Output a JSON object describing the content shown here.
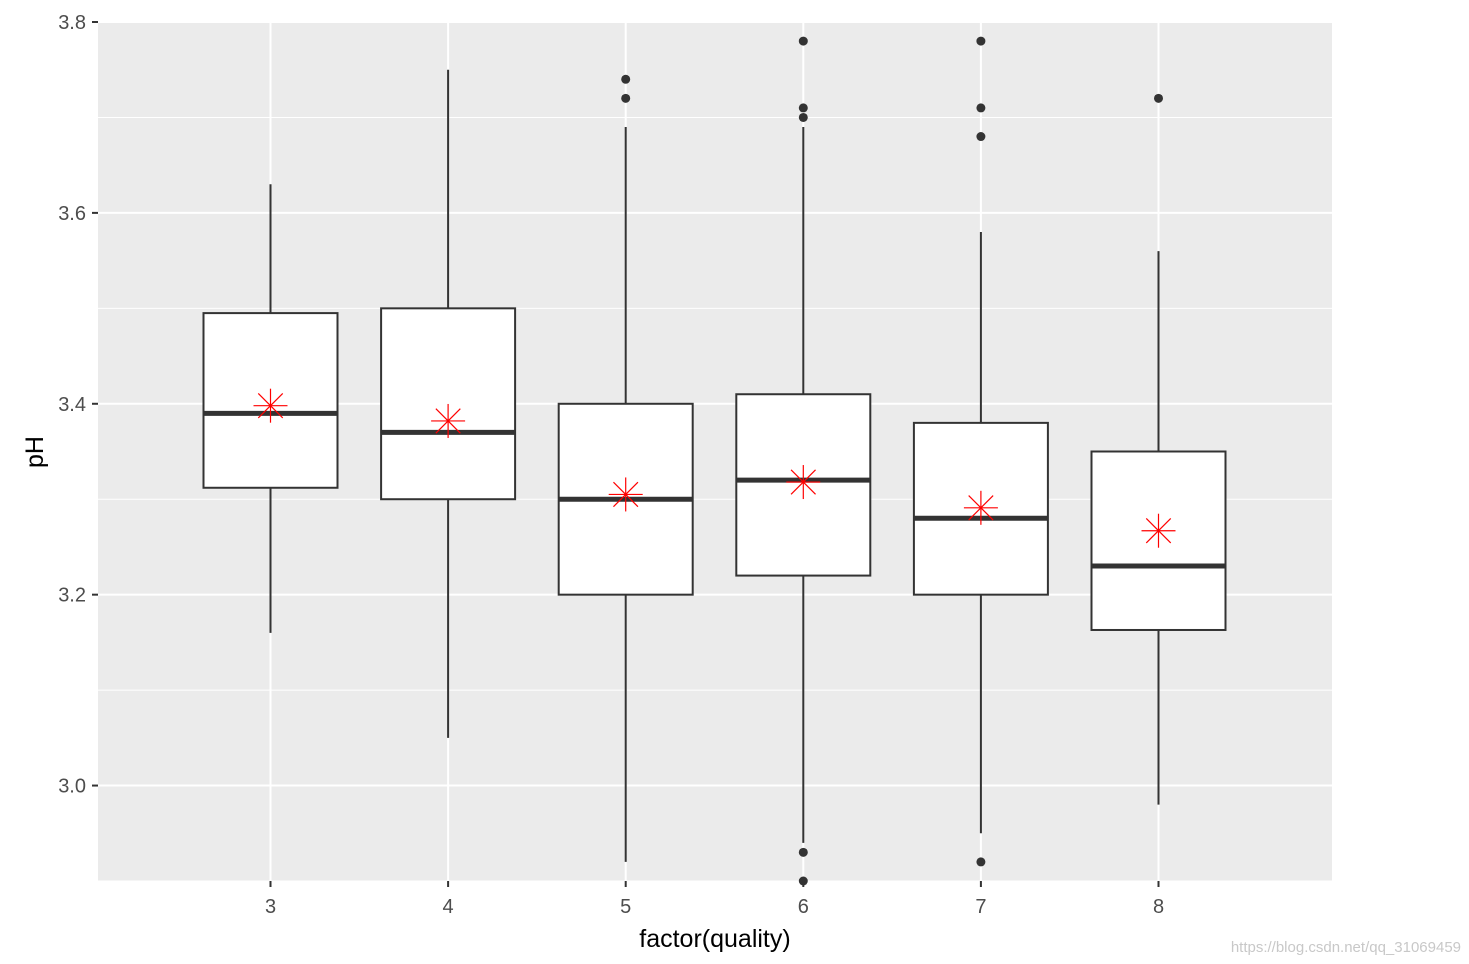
{
  "chart_data": {
    "type": "box",
    "xlabel": "factor(quality)",
    "ylabel": "pH",
    "categories": [
      "3",
      "4",
      "5",
      "6",
      "7",
      "8"
    ],
    "ylim": [
      2.9,
      3.8
    ],
    "yticks": [
      3.0,
      3.2,
      3.4,
      3.6,
      3.8
    ],
    "ytick_labels": [
      "3.0",
      "3.2",
      "3.4",
      "3.6",
      "3.8"
    ],
    "grid": true,
    "boxes": [
      {
        "category": "3",
        "whisker_low": 3.16,
        "q1": 3.312,
        "median": 3.39,
        "q3": 3.495,
        "whisker_high": 3.63,
        "mean": 3.398,
        "outliers": []
      },
      {
        "category": "4",
        "whisker_low": 3.05,
        "q1": 3.3,
        "median": 3.37,
        "q3": 3.5,
        "whisker_high": 3.75,
        "mean": 3.382,
        "outliers": []
      },
      {
        "category": "5",
        "whisker_low": 2.92,
        "q1": 3.2,
        "median": 3.3,
        "q3": 3.4,
        "whisker_high": 3.69,
        "mean": 3.305,
        "outliers": [
          3.72,
          3.74
        ]
      },
      {
        "category": "6",
        "whisker_low": 2.94,
        "q1": 3.22,
        "median": 3.32,
        "q3": 3.41,
        "whisker_high": 3.69,
        "mean": 3.318,
        "outliers": [
          2.9,
          2.93,
          3.7,
          3.71,
          3.78
        ]
      },
      {
        "category": "7",
        "whisker_low": 2.95,
        "q1": 3.2,
        "median": 3.28,
        "q3": 3.38,
        "whisker_high": 3.58,
        "mean": 3.291,
        "outliers": [
          2.92,
          3.68,
          3.71,
          3.78
        ]
      },
      {
        "category": "8",
        "whisker_low": 2.98,
        "q1": 3.163,
        "median": 3.23,
        "q3": 3.35,
        "whisker_high": 3.56,
        "mean": 3.267,
        "outliers": [
          3.72
        ]
      }
    ],
    "colors": {
      "panel_bg": "#ebebeb",
      "grid": "#ffffff",
      "box_fill": "#ffffff",
      "box_stroke": "#333333",
      "outlier": "#333333",
      "mean_marker": "#ff0000"
    }
  },
  "watermark": "https://blog.csdn.net/qq_31069459"
}
